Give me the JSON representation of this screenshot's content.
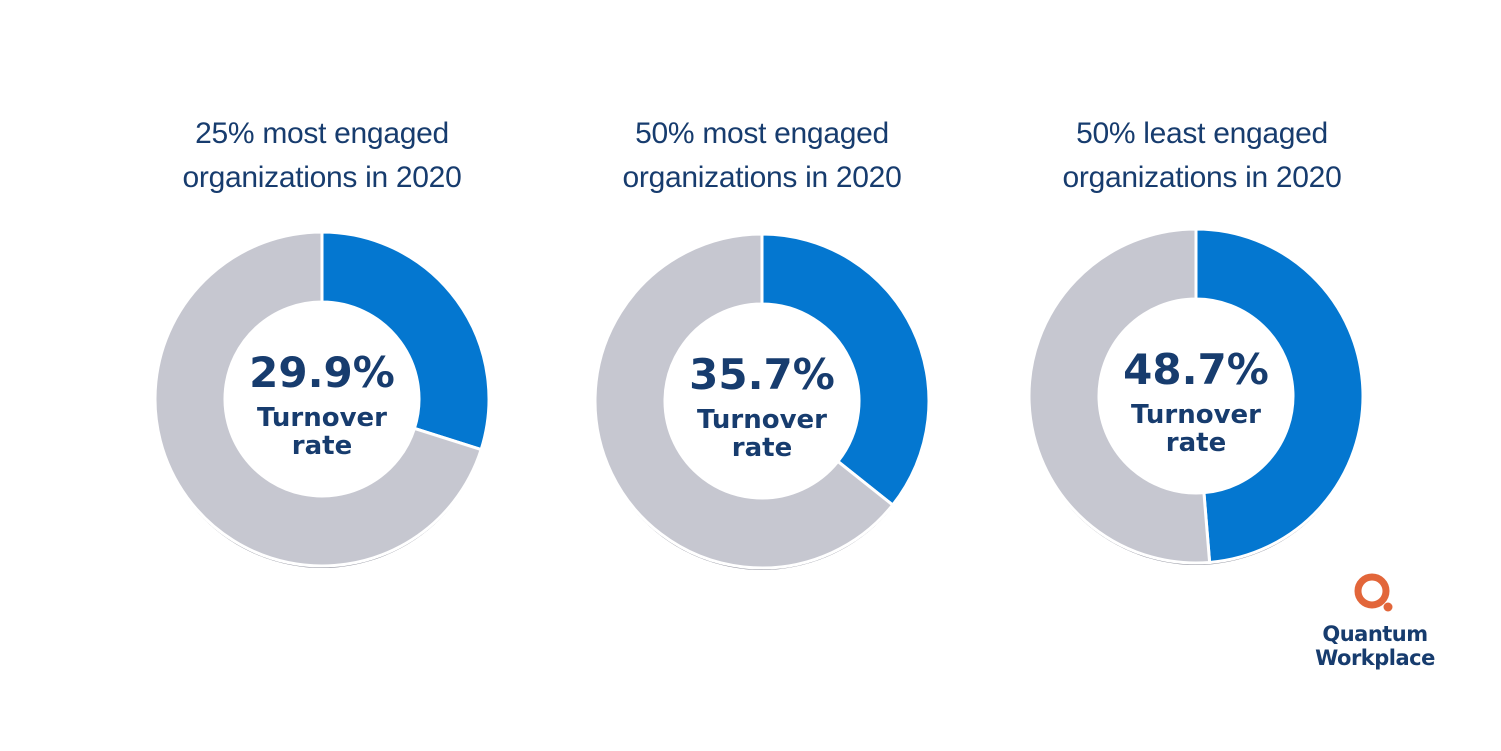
{
  "chart_data": [
    {
      "type": "pie",
      "title": [
        "25% most engaged",
        "organizations in 2020"
      ],
      "center_value": "29.9%",
      "center_label": [
        "Turnover",
        "rate"
      ],
      "slices": [
        {
          "label": "Turnover rate",
          "value": 29.9,
          "color": "#0477d0"
        },
        {
          "label": "",
          "value": 70.1,
          "color": "#c6c7d0"
        }
      ]
    },
    {
      "type": "pie",
      "title": [
        "50% most engaged",
        "organizations in 2020"
      ],
      "center_value": "35.7%",
      "center_label": [
        "Turnover",
        "rate"
      ],
      "slices": [
        {
          "label": "Turnover rate",
          "value": 35.7,
          "color": "#0477d0"
        },
        {
          "label": "",
          "value": 64.3,
          "color": "#c6c7d0"
        }
      ]
    },
    {
      "type": "pie",
      "title": [
        "50% least engaged",
        "organizations in 2020"
      ],
      "center_value": "48.7%",
      "center_label": [
        "Turnover",
        "rate"
      ],
      "slices": [
        {
          "label": "Turnover rate",
          "value": 48.7,
          "color": "#0477d0"
        },
        {
          "label": "",
          "value": 51.3,
          "color": "#c6c7d0"
        }
      ]
    }
  ],
  "logo": {
    "line1": "Quantum",
    "line2": "Workplace",
    "mark_color": "#e2663a",
    "text_color": "#173c6e"
  }
}
